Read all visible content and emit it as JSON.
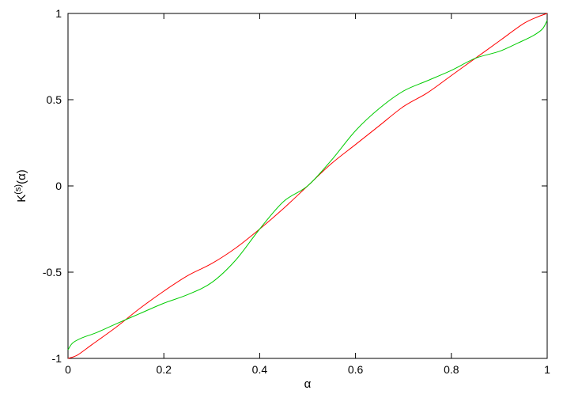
{
  "chart_data": {
    "type": "line",
    "title": "",
    "xlabel": "α",
    "ylabel": "K^(s)(α)",
    "ylabel_parts": {
      "base": "K",
      "superscript": "(s)",
      "suffix": "(α)"
    },
    "xlim": [
      0,
      1
    ],
    "ylim": [
      -1,
      1
    ],
    "xticks": [
      0,
      0.2,
      0.4,
      0.6,
      0.8,
      1
    ],
    "xtick_labels": [
      "0",
      "0.2",
      "0.4",
      "0.6",
      "0.8",
      "1"
    ],
    "yticks": [
      -1,
      -0.5,
      0,
      0.5,
      1
    ],
    "ytick_labels": [
      "-1",
      "-0.5",
      "0",
      "0.5",
      "1"
    ],
    "grid": false,
    "legend": "none",
    "series": [
      {
        "color": "#ff0000",
        "x": [
          0,
          0.02,
          0.05,
          0.1,
          0.15,
          0.2,
          0.25,
          0.3,
          0.35,
          0.4,
          0.45,
          0.5,
          0.55,
          0.6,
          0.65,
          0.7,
          0.75,
          0.8,
          0.85,
          0.9,
          0.95,
          0.98,
          1.0
        ],
        "y": [
          -1.0,
          -0.98,
          -0.92,
          -0.82,
          -0.71,
          -0.61,
          -0.52,
          -0.45,
          -0.36,
          -0.25,
          -0.13,
          0.0,
          0.13,
          0.24,
          0.35,
          0.46,
          0.54,
          0.64,
          0.74,
          0.84,
          0.94,
          0.98,
          1.0
        ]
      },
      {
        "color": "#00cc00",
        "x": [
          0,
          0.01,
          0.03,
          0.06,
          0.1,
          0.15,
          0.2,
          0.25,
          0.3,
          0.35,
          0.4,
          0.45,
          0.5,
          0.55,
          0.6,
          0.65,
          0.7,
          0.75,
          0.8,
          0.85,
          0.9,
          0.94,
          0.97,
          0.99,
          1.0
        ],
        "y": [
          -0.95,
          -0.91,
          -0.88,
          -0.85,
          -0.8,
          -0.74,
          -0.68,
          -0.63,
          -0.56,
          -0.43,
          -0.25,
          -0.09,
          0.0,
          0.15,
          0.32,
          0.45,
          0.55,
          0.61,
          0.67,
          0.74,
          0.78,
          0.83,
          0.87,
          0.91,
          0.96
        ]
      }
    ]
  }
}
